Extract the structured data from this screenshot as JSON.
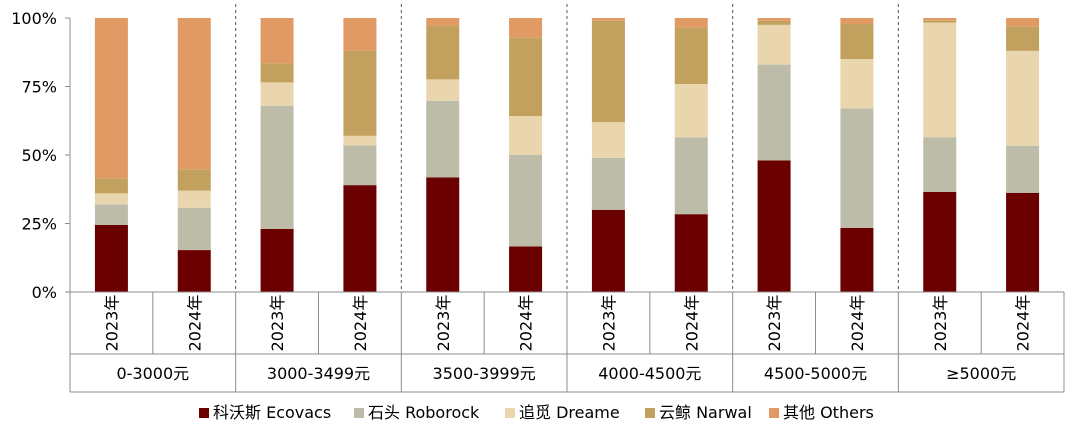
{
  "chart_data": {
    "type": "bar",
    "stacked": true,
    "normalized": true,
    "title": "",
    "xlabel": "",
    "ylabel": "",
    "ylim": [
      0,
      100
    ],
    "y_ticks": [
      "0%",
      "25%",
      "50%",
      "75%",
      "100%"
    ],
    "y_tick_values": [
      0,
      25,
      50,
      75,
      100
    ],
    "groups": [
      {
        "label": "0-3000元",
        "years": [
          "2023年",
          "2024年"
        ]
      },
      {
        "label": "3000-3499元",
        "years": [
          "2023年",
          "2024年"
        ]
      },
      {
        "label": "3500-3999元",
        "years": [
          "2023年",
          "2024年"
        ]
      },
      {
        "label": "4000-4500元",
        "years": [
          "2023年",
          "2024年"
        ]
      },
      {
        "label": "4500-5000元",
        "years": [
          "2023年",
          "2024年"
        ]
      },
      {
        "label": "≥5000元",
        "years": [
          "2023年",
          "2024年"
        ]
      }
    ],
    "categories": [
      "0-3000元 2023年",
      "0-3000元 2024年",
      "3000-3499元 2023年",
      "3000-3499元 2024年",
      "3500-3999元 2023年",
      "3500-3999元 2024年",
      "4000-4500元 2023年",
      "4000-4500元 2024年",
      "4500-5000元 2023年",
      "4500-5000元 2024年",
      "≥5000元 2023年",
      "≥5000元 2024年"
    ],
    "series": [
      {
        "name": "科沃斯 Ecovacs",
        "color": "#6b0000",
        "values": [
          24.5,
          15.3,
          23.0,
          39.0,
          41.8,
          16.6,
          30.0,
          28.4,
          48.0,
          23.4,
          36.5,
          36.2
        ]
      },
      {
        "name": "石头 Roborock",
        "color": "#bcbca8",
        "values": [
          7.5,
          15.4,
          45.0,
          14.5,
          28.0,
          33.4,
          19.0,
          28.0,
          35.0,
          43.6,
          20.0,
          17.2
        ]
      },
      {
        "name": "追觅 Dreame",
        "color": "#ead6ae",
        "values": [
          4.0,
          6.3,
          8.5,
          3.5,
          7.8,
          14.2,
          13.0,
          19.5,
          14.5,
          18.0,
          41.8,
          34.6
        ]
      },
      {
        "name": "云鲸 Narwal",
        "color": "#c2a15f",
        "values": [
          5.5,
          7.8,
          7.0,
          31.0,
          19.7,
          28.6,
          37.0,
          20.6,
          1.5,
          12.8,
          0.7,
          9.0
        ]
      },
      {
        "name": "其他 Others",
        "color": "#e29a64",
        "values": [
          58.5,
          55.2,
          16.5,
          12.0,
          2.7,
          7.2,
          1.0,
          3.5,
          1.0,
          2.2,
          1.0,
          3.0
        ]
      }
    ],
    "legend_position": "bottom",
    "grid": false
  }
}
